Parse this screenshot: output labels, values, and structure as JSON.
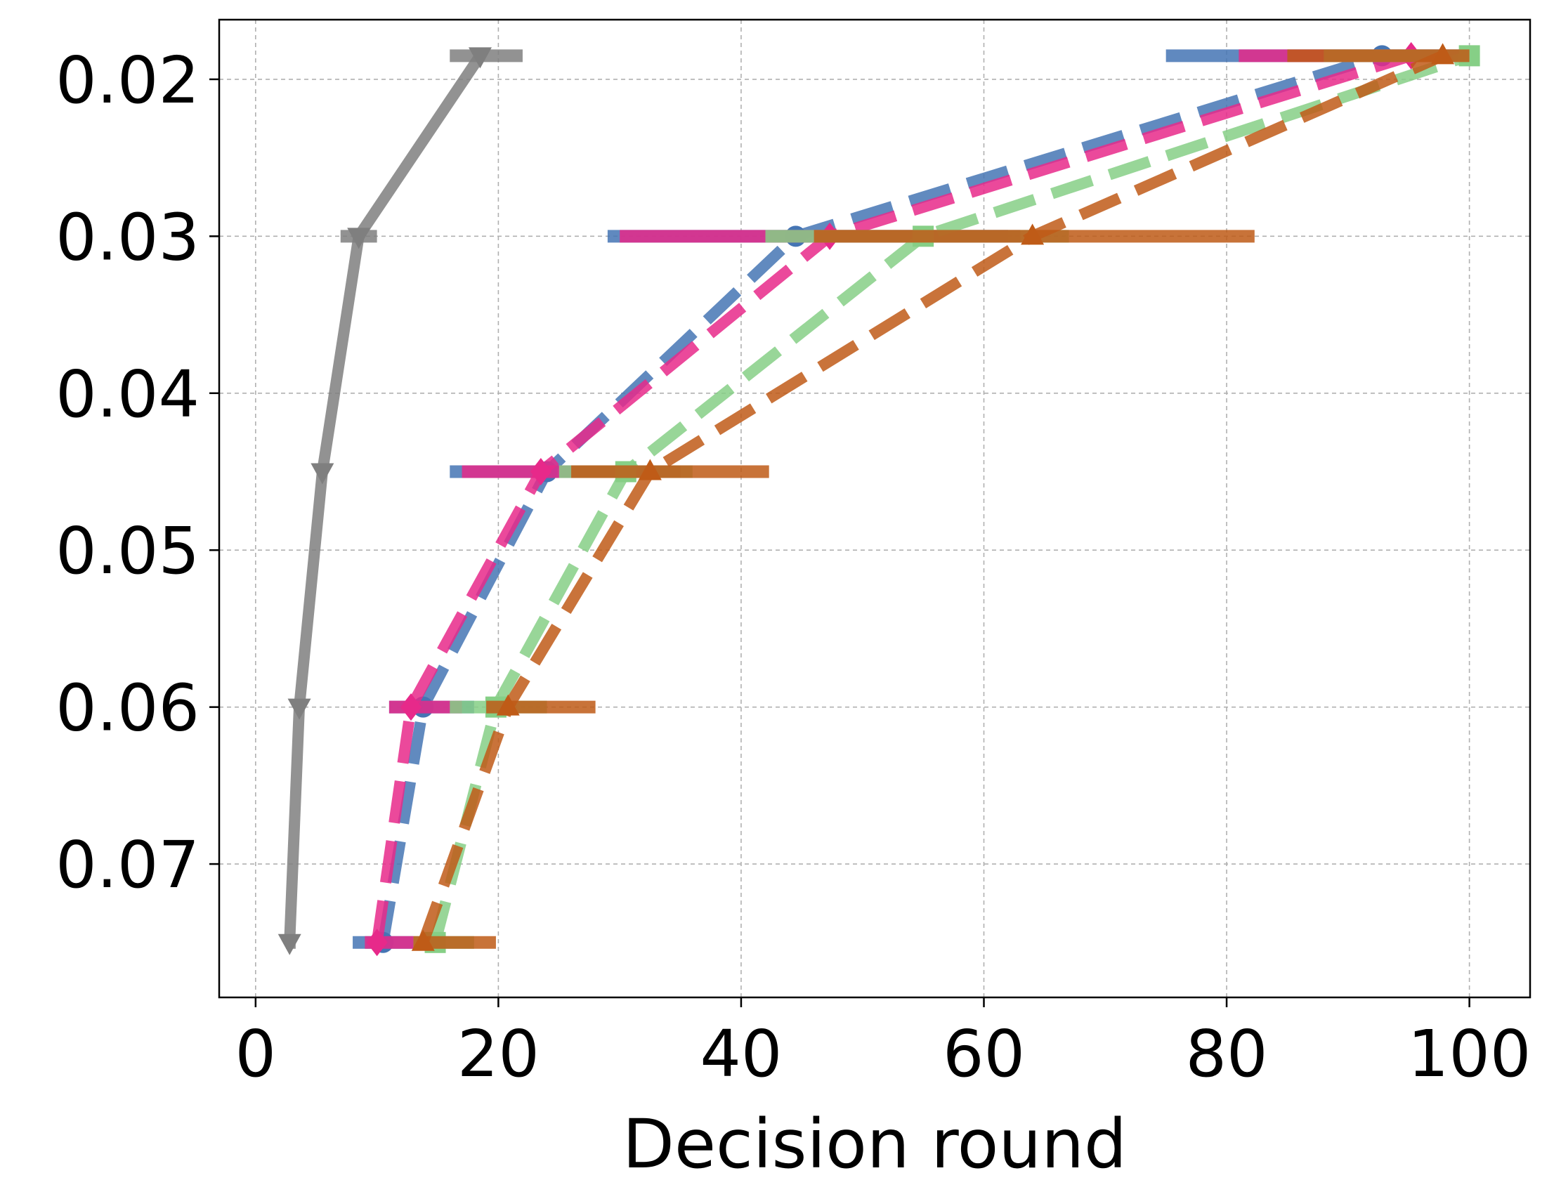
{
  "chart_data": {
    "type": "line",
    "title": "",
    "xlabel": "Decision round",
    "ylabel": "",
    "xlim": [
      -3,
      105
    ],
    "ylim": [
      0.0785,
      0.0162
    ],
    "y_inverted": true,
    "grid": true,
    "x_ticks": [
      0,
      20,
      40,
      60,
      80,
      100
    ],
    "x_tick_labels": [
      "0",
      "20",
      "40",
      "60",
      "80",
      "100"
    ],
    "y_ticks": [
      0.02,
      0.03,
      0.04,
      0.05,
      0.06,
      0.07
    ],
    "y_tick_labels": [
      "0.02",
      "0.03",
      "0.04",
      "0.05",
      "0.06",
      "0.07"
    ],
    "series": [
      {
        "color": "#7f7f7f",
        "line_style": "solid",
        "marker": "triangle-down",
        "points": [
          {
            "x": 2.8,
            "y": 0.075,
            "xerr": [
              2.5,
              3.3
            ]
          },
          {
            "x": 3.6,
            "y": 0.06,
            "xerr": null
          },
          {
            "x": 5.5,
            "y": 0.045,
            "xerr": null
          },
          {
            "x": 8.5,
            "y": 0.03,
            "xerr": [
              7,
              10
            ]
          },
          {
            "x": 18.5,
            "y": 0.0185,
            "xerr": [
              16,
              22
            ]
          }
        ]
      },
      {
        "color": "#4575b4",
        "line_style": "dashed",
        "marker": "circle",
        "points": [
          {
            "x": 10.5,
            "y": 0.075,
            "xerr": [
              8,
              13
            ]
          },
          {
            "x": 13.8,
            "y": 0.06,
            "xerr": [
              11,
              18
            ]
          },
          {
            "x": 24.0,
            "y": 0.045,
            "xerr": [
              16,
              33
            ]
          },
          {
            "x": 44.5,
            "y": 0.03,
            "xerr": [
              29,
              62
            ]
          },
          {
            "x": 92.8,
            "y": 0.0185,
            "xerr": [
              75,
              100
            ]
          }
        ]
      },
      {
        "color": "#e7298a",
        "line_style": "dashed",
        "marker": "diamond",
        "points": [
          {
            "x": 10.0,
            "y": 0.075,
            "xerr": [
              9,
              13
            ]
          },
          {
            "x": 12.8,
            "y": 0.06,
            "xerr": [
              11,
              17
            ]
          },
          {
            "x": 23.5,
            "y": 0.045,
            "xerr": [
              17,
              35
            ]
          },
          {
            "x": 47.3,
            "y": 0.03,
            "xerr": [
              30,
              63
            ]
          },
          {
            "x": 95.2,
            "y": 0.0185,
            "xerr": [
              81,
              100
            ]
          }
        ]
      },
      {
        "color": "#86cf86",
        "line_style": "dashed",
        "marker": "square",
        "points": [
          {
            "x": 14.8,
            "y": 0.075,
            "xerr": [
              13,
              18
            ]
          },
          {
            "x": 19.8,
            "y": 0.06,
            "xerr": [
              16,
              24
            ]
          },
          {
            "x": 30.5,
            "y": 0.045,
            "xerr": [
              25,
              36
            ]
          },
          {
            "x": 55.0,
            "y": 0.03,
            "xerr": [
              42,
              67
            ]
          },
          {
            "x": 100.0,
            "y": 0.0185,
            "xerr": [
              88,
              100.5
            ]
          }
        ]
      },
      {
        "color": "#bf5b17",
        "line_style": "dashed",
        "marker": "triangle-up",
        "points": [
          {
            "x": 13.8,
            "y": 0.075,
            "xerr": [
              13,
              19.8
            ]
          },
          {
            "x": 20.8,
            "y": 0.06,
            "xerr": [
              19,
              28
            ]
          },
          {
            "x": 32.5,
            "y": 0.045,
            "xerr": [
              26,
              42.3
            ]
          },
          {
            "x": 64.0,
            "y": 0.03,
            "xerr": [
              46,
              82.3
            ]
          },
          {
            "x": 97.8,
            "y": 0.0185,
            "xerr": [
              85,
              100
            ]
          }
        ]
      }
    ]
  }
}
